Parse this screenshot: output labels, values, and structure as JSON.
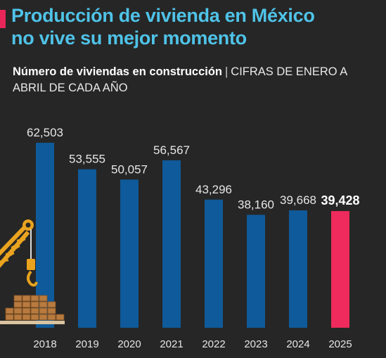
{
  "headline": {
    "line1": "Producción de vivienda en México",
    "line2": "no vive su mejor momento"
  },
  "subtitle": {
    "bold": "Número de viviendas en construcción",
    "separator": "|",
    "rest": "CIFRAS DE ENERO A ABRIL DE CADA AÑO"
  },
  "colors": {
    "background": "#262626",
    "headline": "#4fc3e8",
    "accent": "#e8265a",
    "bar": "#0f5a9a",
    "highlight_bar": "#ee2b5c",
    "crane": "#e9a31f",
    "bricks": "#b87a3e"
  },
  "chart_data": {
    "type": "bar",
    "title": "Número de viviendas en construcción",
    "categories": [
      "2018",
      "2019",
      "2020",
      "2021",
      "2022",
      "2023",
      "2024",
      "2025"
    ],
    "values": [
      62503,
      53555,
      50057,
      56567,
      43296,
      38160,
      39668,
      39428
    ],
    "value_labels": [
      "62,503",
      "53,555",
      "50,057",
      "56,567",
      "43,296",
      "38,160",
      "39,668",
      "39,428"
    ],
    "highlight_index": 7,
    "ylim": [
      0,
      62503
    ],
    "grid": false,
    "legend": "none"
  }
}
